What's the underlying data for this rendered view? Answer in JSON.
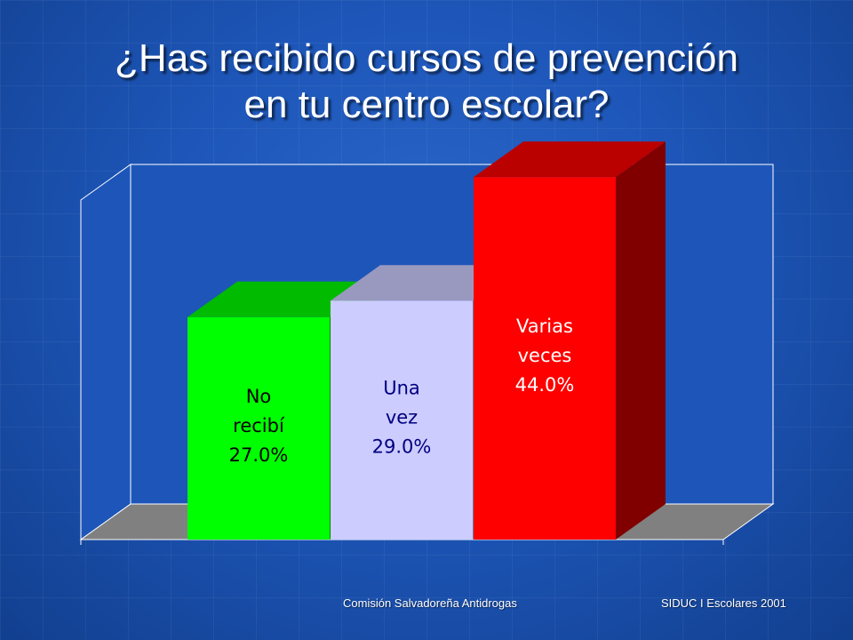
{
  "title": {
    "line1": "¿Has recibido cursos de prevención",
    "line2": "en tu centro escolar?"
  },
  "chart_data": {
    "type": "bar",
    "style": "3d",
    "categories": [
      "No recibí",
      "Una vez",
      "Varias veces"
    ],
    "values": [
      27.0,
      29.0,
      44.0
    ],
    "unit": "%",
    "ylim": [
      0,
      60
    ],
    "grid": false,
    "legend": "none",
    "bars": [
      {
        "label_lines": [
          "No",
          "recibí"
        ],
        "value_text": "27.0%",
        "color": "#00ff00",
        "top_color": "#00bb00",
        "side_color": "#008800",
        "text_color": "#000000"
      },
      {
        "label_lines": [
          "Una",
          "vez"
        ],
        "value_text": "29.0%",
        "color": "#ccccff",
        "top_color": "#9999c0",
        "side_color": "#7777a0",
        "text_color": "#000080"
      },
      {
        "label_lines": [
          "Varias",
          "veces"
        ],
        "value_text": "44.0%",
        "color": "#ff0000",
        "top_color": "#bb0000",
        "side_color": "#800000",
        "text_color": "#ffffff"
      }
    ],
    "floor_color": "#808080",
    "wall_color": "#1d56b8"
  },
  "footer": {
    "left": "Comisión Salvadoreña Antidrogas",
    "right": "SIDUC I Escolares 2001"
  }
}
